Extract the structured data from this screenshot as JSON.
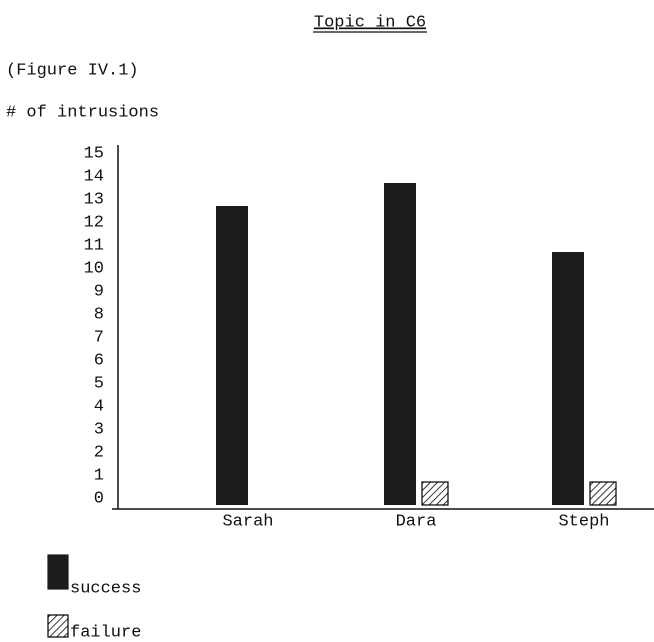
{
  "chart_data": {
    "type": "bar",
    "title": "Topic in C6",
    "subtitle": "(Figure IV.1)",
    "y_label": "# of intrusions",
    "categories": [
      "Sarah",
      "Dara",
      "Steph"
    ],
    "series": [
      {
        "name": "success",
        "color": "#1c1c1c",
        "hatch": false,
        "values": [
          13,
          14,
          11
        ]
      },
      {
        "name": "failure",
        "color": "#000000",
        "hatch": true,
        "values": [
          0,
          1,
          1
        ]
      }
    ],
    "ylim": [
      0,
      15
    ],
    "yticks": [
      0,
      1,
      2,
      3,
      4,
      5,
      6,
      7,
      8,
      9,
      10,
      11,
      12,
      13,
      14,
      15
    ],
    "grid": false
  }
}
